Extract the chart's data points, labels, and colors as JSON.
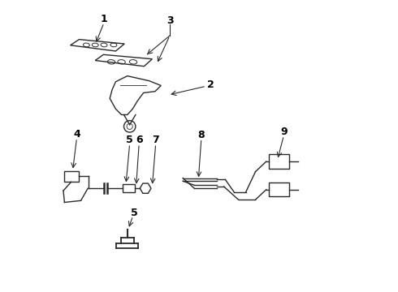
{
  "background_color": "#ffffff",
  "line_color": "#2a2a2a",
  "label_color": "#000000",
  "label_fontsize": 9,
  "label_fontweight": "bold",
  "figsize": [
    4.9,
    3.6
  ],
  "dpi": 100
}
